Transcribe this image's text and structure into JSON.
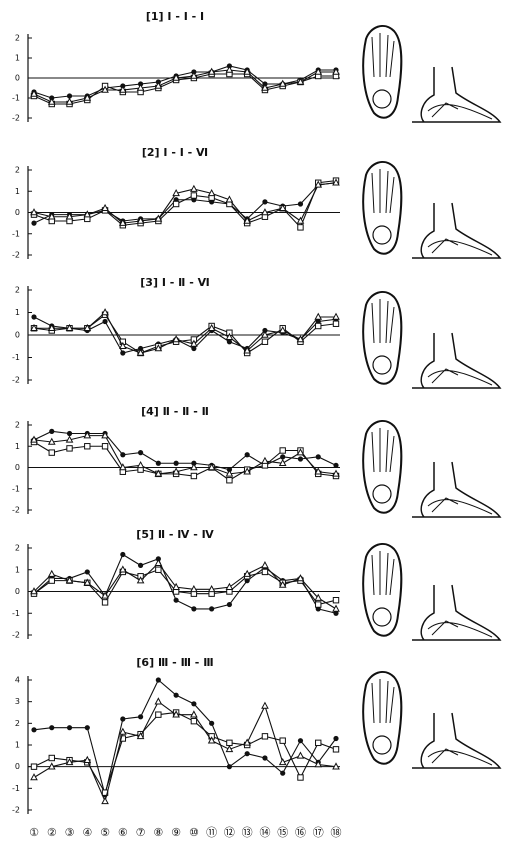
{
  "chart_data": [
    {
      "type": "line",
      "title": "[1] Ⅰ - Ⅰ - Ⅰ",
      "ylim": [
        -2,
        2
      ],
      "yticks": [
        -2,
        -1,
        0,
        1,
        2
      ],
      "series": [
        {
          "marker": "circle",
          "color": "#111",
          "values": [
            -0.7,
            -1,
            -0.9,
            -0.9,
            -0.5,
            -0.4,
            -0.3,
            -0.2,
            0.1,
            0.3,
            0.3,
            0.6,
            0.4,
            -0.3,
            -0.3,
            -0.1,
            0.4,
            0.4
          ]
        },
        {
          "marker": "square",
          "color": "#111",
          "values": [
            -0.9,
            -1.3,
            -1.3,
            -1.1,
            -0.4,
            -0.7,
            -0.7,
            -0.5,
            -0.1,
            0,
            0.2,
            0.2,
            0.2,
            -0.6,
            -0.4,
            -0.2,
            0.1,
            0.1
          ]
        },
        {
          "marker": "triangle",
          "color": "#111",
          "values": [
            -0.8,
            -1.2,
            -1.2,
            -1,
            -0.6,
            -0.6,
            -0.5,
            -0.4,
            0,
            0.1,
            0.3,
            0.4,
            0.3,
            -0.5,
            -0.3,
            -0.2,
            0.3,
            0.3
          ]
        }
      ]
    },
    {
      "type": "line",
      "title": "[2] Ⅰ - Ⅰ - Ⅵ",
      "ylim": [
        -2,
        2
      ],
      "yticks": [
        -2,
        -1,
        0,
        1,
        2
      ],
      "series": [
        {
          "marker": "circle",
          "color": "#111",
          "values": [
            -0.5,
            -0.1,
            -0.1,
            -0.1,
            0.1,
            -0.4,
            -0.3,
            -0.3,
            0.6,
            0.6,
            0.5,
            0.4,
            -0.3,
            0.5,
            0.3,
            0.4,
            1.3,
            1.4
          ]
        },
        {
          "marker": "square",
          "color": "#111",
          "values": [
            -0.1,
            -0.4,
            -0.4,
            -0.3,
            0.1,
            -0.6,
            -0.5,
            -0.4,
            0.4,
            0.8,
            0.7,
            0.4,
            -0.5,
            -0.2,
            0.2,
            -0.7,
            1.4,
            1.5
          ]
        },
        {
          "marker": "triangle",
          "color": "#111",
          "values": [
            0,
            -0.2,
            -0.2,
            -0.1,
            0.2,
            -0.5,
            -0.4,
            -0.3,
            0.9,
            1.1,
            0.9,
            0.6,
            -0.4,
            0,
            0.2,
            -0.4,
            1.3,
            1.4
          ]
        }
      ]
    },
    {
      "type": "line",
      "title": "[3] Ⅰ - Ⅱ - Ⅵ",
      "ylim": [
        -2,
        2
      ],
      "yticks": [
        -2,
        -1,
        0,
        1,
        2
      ],
      "series": [
        {
          "marker": "circle",
          "color": "#111",
          "values": [
            0.8,
            0.4,
            0.3,
            0.2,
            0.6,
            -0.8,
            -0.6,
            -0.4,
            -0.2,
            -0.6,
            0.2,
            -0.3,
            -0.6,
            0.2,
            0.1,
            -0.2,
            0.6,
            0.7
          ]
        },
        {
          "marker": "square",
          "color": "#111",
          "values": [
            0.3,
            0.2,
            0.3,
            0.3,
            0.9,
            -0.3,
            -0.8,
            -0.5,
            -0.3,
            -0.2,
            0.4,
            0.1,
            -0.8,
            -0.3,
            0.3,
            -0.3,
            0.4,
            0.5
          ]
        },
        {
          "marker": "triangle",
          "color": "#111",
          "values": [
            0.3,
            0.3,
            0.3,
            0.3,
            1,
            -0.5,
            -0.8,
            -0.6,
            -0.2,
            -0.4,
            0.3,
            -0.1,
            -0.7,
            0,
            0.2,
            -0.2,
            0.8,
            0.8
          ]
        }
      ]
    },
    {
      "type": "line",
      "title": "[4] Ⅱ - Ⅱ - Ⅱ",
      "ylim": [
        -2,
        2
      ],
      "yticks": [
        -2,
        -1,
        0,
        1,
        2
      ],
      "series": [
        {
          "marker": "circle",
          "color": "#111",
          "values": [
            1.3,
            1.7,
            1.6,
            1.6,
            1.6,
            0.6,
            0.7,
            0.2,
            0.2,
            0.2,
            0.1,
            -0.1,
            0.6,
            0.1,
            0.5,
            0.4,
            0.5,
            0.1
          ]
        },
        {
          "marker": "square",
          "color": "#111",
          "values": [
            1.2,
            0.7,
            0.9,
            1,
            1,
            -0.2,
            -0.1,
            -0.3,
            -0.3,
            -0.4,
            0,
            -0.6,
            -0.1,
            0.1,
            0.8,
            0.8,
            -0.3,
            -0.4
          ]
        },
        {
          "marker": "triangle",
          "color": "#111",
          "values": [
            1.3,
            1.2,
            1.3,
            1.5,
            1.5,
            0,
            0.1,
            -0.3,
            -0.2,
            0,
            0,
            -0.3,
            -0.2,
            0.3,
            0.2,
            0.7,
            -0.2,
            -0.3
          ]
        }
      ]
    },
    {
      "type": "line",
      "title": "[5] Ⅱ - Ⅳ - Ⅳ",
      "ylim": [
        -2,
        2
      ],
      "yticks": [
        -2,
        -1,
        0,
        1,
        2
      ],
      "series": [
        {
          "marker": "circle",
          "color": "#111",
          "values": [
            -0.1,
            0.6,
            0.6,
            0.9,
            -0.2,
            1.7,
            1.2,
            1.5,
            -0.4,
            -0.8,
            -0.8,
            -0.6,
            0.5,
            1.1,
            0.5,
            0.6,
            -0.8,
            -1
          ]
        },
        {
          "marker": "square",
          "color": "#111",
          "values": [
            -0.1,
            0.5,
            0.5,
            0.4,
            -0.5,
            0.9,
            0.7,
            1,
            0,
            -0.1,
            -0.1,
            0,
            0.7,
            0.9,
            0.4,
            0.5,
            -0.6,
            -0.4
          ]
        },
        {
          "marker": "triangle",
          "color": "#111",
          "values": [
            0,
            0.8,
            0.5,
            0.4,
            -0.2,
            1,
            0.5,
            1.3,
            0.2,
            0.1,
            0.1,
            0.2,
            0.8,
            1.2,
            0.3,
            0.6,
            -0.3,
            -0.8
          ]
        }
      ]
    },
    {
      "type": "line",
      "title": "[6] Ⅲ - Ⅲ - Ⅲ",
      "ylim": [
        -2,
        4
      ],
      "yticks": [
        -2,
        -1,
        0,
        1,
        2,
        3,
        4
      ],
      "categories": [
        "①",
        "②",
        "③",
        "④",
        "⑤",
        "⑥",
        "⑦",
        "⑧",
        "⑨",
        "⑩",
        "⑪",
        "⑫",
        "⑬",
        "⑭",
        "⑮",
        "⑯",
        "⑰",
        "⑱"
      ],
      "series": [
        {
          "marker": "circle",
          "color": "#111",
          "values": [
            1.7,
            1.8,
            1.8,
            1.8,
            -1.3,
            2.2,
            2.3,
            4,
            3.3,
            2.9,
            2,
            0,
            0.6,
            0.4,
            -0.3,
            1.2,
            0.2,
            1.3
          ]
        },
        {
          "marker": "square",
          "color": "#111",
          "values": [
            0,
            0.4,
            0.3,
            0.2,
            -1.2,
            1.3,
            1.5,
            2.4,
            2.5,
            2.1,
            1.4,
            1.1,
            1,
            1.4,
            1.2,
            -0.5,
            1.1,
            0.8
          ]
        },
        {
          "marker": "triangle",
          "color": "#111",
          "values": [
            -0.5,
            0,
            0.2,
            0.3,
            -1.6,
            1.6,
            1.4,
            3,
            2.4,
            2.4,
            1.2,
            0.8,
            1.1,
            2.8,
            0.2,
            0.5,
            0.1,
            0
          ]
        }
      ]
    }
  ]
}
